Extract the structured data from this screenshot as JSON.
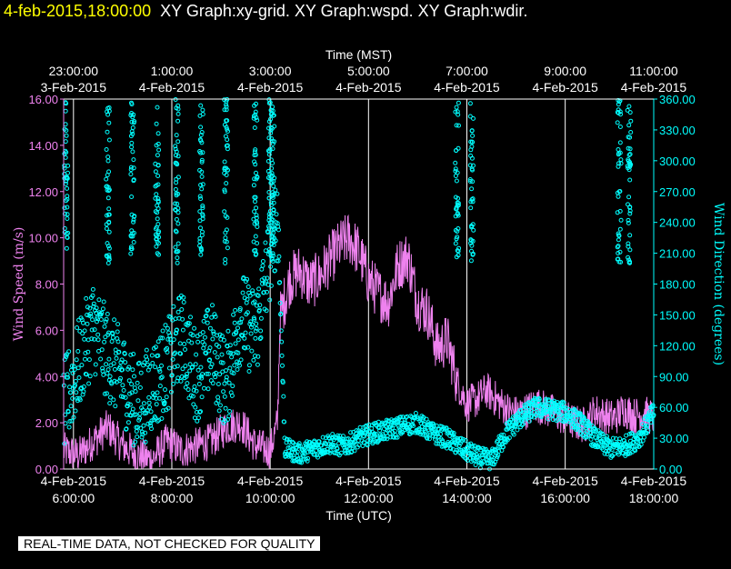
{
  "header": {
    "timestamp": "4-feb-2015,18:00:00",
    "graphs": "XY Graph:xy-grid.  XY Graph:wspd.  XY Graph:wdir."
  },
  "disclaimer": "REAL-TIME DATA, NOT CHECKED FOR QUALITY",
  "colors": {
    "speed": "#ee82ee",
    "direction": "#00ffff",
    "axis": "#ffffff",
    "timestamp": "#ffff00"
  },
  "chart_data": {
    "type": "line",
    "title": "",
    "top_axis": {
      "label": "Time (MST)",
      "ticks": [
        {
          "time": "23:00:00",
          "date": "3-Feb-2015"
        },
        {
          "time": "1:00:00",
          "date": "4-Feb-2015"
        },
        {
          "time": "3:00:00",
          "date": "4-Feb-2015"
        },
        {
          "time": "5:00:00",
          "date": "4-Feb-2015"
        },
        {
          "time": "7:00:00",
          "date": "4-Feb-2015"
        },
        {
          "time": "9:00:00",
          "date": "4-Feb-2015"
        },
        {
          "time": "11:00:00",
          "date": "4-Feb-2015"
        }
      ]
    },
    "bottom_axis": {
      "label": "Time (UTC)",
      "range_hours": [
        6,
        18
      ],
      "ticks": [
        {
          "time": "6:00:00",
          "date": "4-Feb-2015"
        },
        {
          "time": "8:00:00",
          "date": "4-Feb-2015"
        },
        {
          "time": "10:00:00",
          "date": "4-Feb-2015"
        },
        {
          "time": "12:00:00",
          "date": "4-Feb-2015"
        },
        {
          "time": "14:00:00",
          "date": "4-Feb-2015"
        },
        {
          "time": "16:00:00",
          "date": "4-Feb-2015"
        },
        {
          "time": "18:00:00",
          "date": "4-Feb-2015"
        }
      ]
    },
    "y_left": {
      "label": "Wind Speed (m/s)",
      "ylim": [
        0,
        16
      ],
      "ticks": [
        "0.00",
        "2.00",
        "4.00",
        "6.00",
        "8.00",
        "10.00",
        "12.00",
        "14.00",
        "16.00"
      ]
    },
    "y_right": {
      "label": "Wind Direction (degrees)",
      "ylim": [
        0,
        360
      ],
      "ticks": [
        "0.00",
        "30.00",
        "60.00",
        "90.00",
        "120.00",
        "150.00",
        "180.00",
        "210.00",
        "240.00",
        "270.00",
        "300.00",
        "330.00",
        "360.00"
      ]
    },
    "grid_hours": [
      6.2,
      8.2,
      10.2,
      12.2,
      14.2,
      16.2,
      18.0
    ],
    "series": [
      {
        "name": "Wind Speed",
        "kind": "line",
        "x_hours": [
          6.0,
          6.3,
          6.6,
          6.9,
          7.2,
          7.5,
          7.8,
          8.1,
          8.4,
          8.7,
          9.0,
          9.3,
          9.6,
          9.9,
          10.2,
          10.35,
          10.4,
          10.6,
          10.8,
          11.0,
          11.2,
          11.4,
          11.6,
          11.8,
          12.0,
          12.2,
          12.4,
          12.6,
          12.8,
          13.0,
          13.2,
          13.4,
          13.6,
          13.8,
          14.0,
          14.2,
          14.4,
          14.6,
          14.8,
          15.0,
          15.2,
          15.4,
          15.6,
          15.8,
          16.0,
          16.2,
          16.4,
          16.6,
          16.8,
          17.0,
          17.2,
          17.4,
          17.6,
          17.8,
          18.0
        ],
        "values": [
          0.8,
          0.6,
          1.2,
          1.8,
          1.0,
          0.6,
          0.4,
          1.2,
          0.8,
          1.0,
          1.2,
          1.8,
          2.0,
          1.0,
          0.8,
          2.0,
          6.5,
          8.2,
          8.6,
          8.0,
          8.3,
          9.0,
          9.6,
          10.0,
          9.4,
          8.2,
          7.6,
          7.2,
          8.8,
          9.2,
          7.2,
          6.8,
          5.2,
          5.6,
          3.8,
          2.8,
          3.0,
          3.4,
          3.0,
          2.6,
          2.4,
          2.5,
          2.8,
          2.6,
          2.4,
          2.2,
          2.0,
          1.9,
          2.5,
          2.3,
          2.2,
          2.6,
          2.3,
          2.4,
          2.2
        ],
        "noise": 0.9
      },
      {
        "name": "Wind Direction",
        "kind": "scatter",
        "x_hours": [
          6.0,
          6.3,
          6.6,
          6.9,
          7.2,
          7.5,
          7.8,
          8.1,
          8.4,
          8.7,
          9.0,
          9.3,
          9.6,
          9.9,
          10.2,
          10.35,
          10.5,
          10.8,
          11.1,
          11.4,
          11.7,
          12.0,
          12.3,
          12.6,
          12.9,
          13.2,
          13.5,
          13.8,
          14.1,
          14.4,
          14.7,
          15.0,
          15.3,
          15.6,
          15.9,
          16.2,
          16.5,
          16.8,
          17.1,
          17.4,
          17.7,
          18.0
        ],
        "values": [
          60,
          100,
          140,
          110,
          90,
          60,
          80,
          100,
          130,
          90,
          120,
          80,
          150,
          130,
          210,
          250,
          20,
          15,
          20,
          25,
          22,
          30,
          35,
          38,
          42,
          45,
          35,
          30,
          20,
          12,
          8,
          35,
          50,
          60,
          58,
          55,
          45,
          30,
          20,
          22,
          30,
          55
        ],
        "scatter_spread": 45,
        "gust_hours": [
          6.05,
          6.9,
          7.4,
          7.9,
          8.3,
          8.8,
          9.3,
          9.9,
          10.2,
          10.25,
          14.0,
          14.3,
          17.3,
          17.5
        ]
      }
    ]
  }
}
